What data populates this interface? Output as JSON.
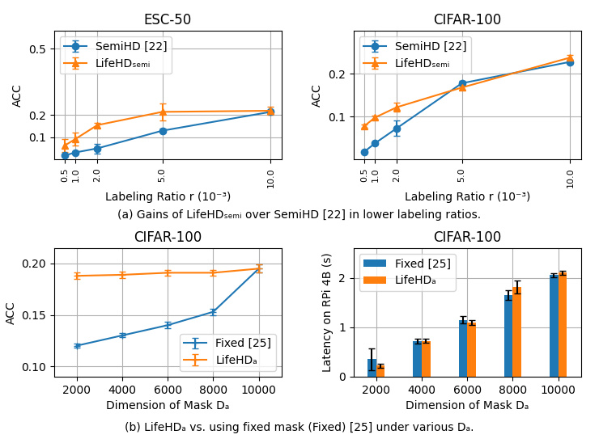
{
  "chart_data": [
    {
      "type": "line",
      "title": "ESC-50",
      "xlabel": "Labeling Ratio r (10⁻³)",
      "ylabel": "ACC",
      "x": [
        0.5,
        1.0,
        2.0,
        5.0,
        10.0
      ],
      "series": [
        {
          "name": "SemiHD [22]",
          "marker": "o",
          "values": [
            0.018,
            0.032,
            0.05,
            0.13,
            0.215
          ],
          "errors": [
            0.004,
            0.005,
            0.022,
            0.008,
            0.008
          ]
        },
        {
          "name": "LifeHDₛₑₘᵢ",
          "marker": "^",
          "values": [
            0.063,
            0.093,
            0.155,
            0.215,
            0.22
          ],
          "errors": [
            0.028,
            0.03,
            0.012,
            0.038,
            0.02
          ]
        }
      ],
      "xlim": [
        0,
        10.5
      ],
      "xticks": [
        0.5,
        {
          "value": 1,
          "label": "1.0"
        },
        {
          "value": 2,
          "label": "2.0"
        },
        {
          "value": 5,
          "label": "5.0"
        },
        {
          "value": 10,
          "label": "10.0"
        }
      ],
      "ylim": [
        0,
        0.58
      ],
      "yticks": [
        0.1,
        0.2,
        0.5
      ],
      "grid": true,
      "legend": "upper left",
      "annotations": [
        "(a) Gains of LifeHDₛₑₘᵢ over SemiHD [22] in lower labeling ratios."
      ]
    },
    {
      "type": "line",
      "title": "CIFAR-100",
      "xlabel": "Labeling Ratio r (10⁻³)",
      "ylabel": "ACC",
      "x": [
        0.5,
        1.0,
        2.0,
        5.0,
        10.0
      ],
      "series": [
        {
          "name": "SemiHD [22]",
          "marker": "o",
          "values": [
            0.018,
            0.038,
            0.073,
            0.178,
            0.228
          ],
          "errors": [
            0.002,
            0.003,
            0.018,
            0.005,
            0.005
          ]
        },
        {
          "name": "LifeHDₛₑₘᵢ",
          "marker": "^",
          "values": [
            0.078,
            0.098,
            0.122,
            0.168,
            0.238
          ],
          "errors": [
            0.004,
            0.004,
            0.01,
            0.005,
            0.006
          ]
        }
      ],
      "xlim": [
        0,
        10.5
      ],
      "xticks": [
        0.5,
        {
          "value": 1,
          "label": "1.0"
        },
        {
          "value": 2,
          "label": "2.0"
        },
        {
          "value": 5,
          "label": "5.0"
        },
        {
          "value": 10,
          "label": "10.0"
        }
      ],
      "ylim": [
        0,
        0.3
      ],
      "yticks": [
        0.1,
        0.2
      ],
      "grid": true,
      "legend": "upper left"
    },
    {
      "type": "line",
      "title": "CIFAR-100",
      "xlabel": "Dimension of Mask Dₐ",
      "ylabel": "ACC",
      "x": [
        2000,
        4000,
        6000,
        8000,
        10000
      ],
      "series": [
        {
          "name": "Fixed [25]",
          "marker": "+",
          "values": [
            0.12,
            0.13,
            0.14,
            0.153,
            0.195
          ],
          "errors": [
            0.002,
            0.002,
            0.003,
            0.003,
            0.004
          ]
        },
        {
          "name": "LifeHDₐ",
          "marker": "+",
          "values": [
            0.188,
            0.189,
            0.191,
            0.191,
            0.195
          ],
          "errors": [
            0.003,
            0.003,
            0.003,
            0.003,
            0.004
          ]
        }
      ],
      "xlim": [
        1000,
        11000
      ],
      "xticks": [
        2000,
        4000,
        6000,
        8000,
        10000
      ],
      "ylim": [
        0.09,
        0.215
      ],
      "yticks": [
        {
          "value": 0.1,
          "label": "0.10"
        },
        {
          "value": 0.15,
          "label": "0.15"
        },
        {
          "value": 0.2,
          "label": "0.20"
        }
      ],
      "grid": true,
      "legend": "lower right",
      "annotations": [
        "(b) LifeHDₐ vs. using fixed mask (Fixed) [25] under various Dₐ."
      ]
    },
    {
      "type": "bar",
      "title": "CIFAR-100",
      "xlabel": "Dimension of Mask Dₐ",
      "ylabel": "Latency on RPi 4B (s)",
      "x": [
        2000,
        4000,
        6000,
        8000,
        10000
      ],
      "series": [
        {
          "name": "Fixed [25]",
          "values": [
            0.35,
            0.72,
            1.15,
            1.65,
            2.05
          ],
          "errors": [
            0.22,
            0.05,
            0.07,
            0.1,
            0.04
          ]
        },
        {
          "name": "LifeHDₐ",
          "values": [
            0.22,
            0.72,
            1.1,
            1.82,
            2.1
          ],
          "errors": [
            0.04,
            0.04,
            0.05,
            0.13,
            0.04
          ]
        }
      ],
      "xlim": [
        1000,
        11000
      ],
      "xticks": [
        2000,
        4000,
        6000,
        8000,
        10000
      ],
      "ylim": [
        0,
        2.6
      ],
      "yticks": [
        0,
        1,
        2
      ],
      "grid": true,
      "legend": "upper left"
    }
  ]
}
